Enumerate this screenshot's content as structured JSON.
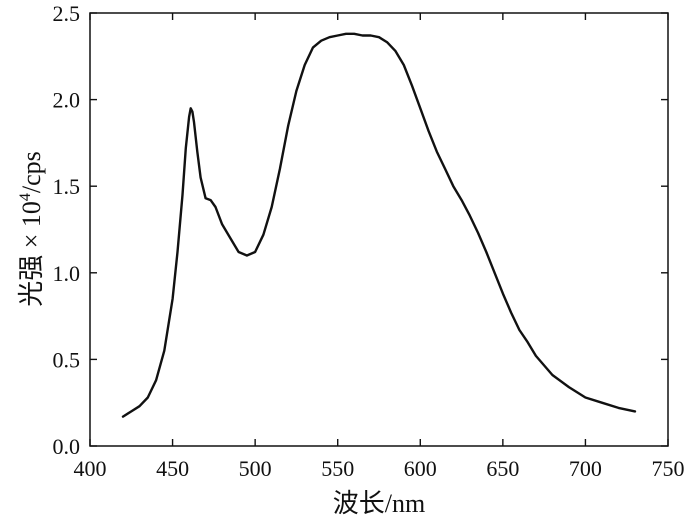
{
  "chart_data": {
    "type": "line",
    "title": "",
    "xlabel": "波长/nm",
    "ylabel": "光强 × 10⁴/cps",
    "ylabel_parts": {
      "base": "光强 × 10",
      "exponent": "4",
      "unit": "/cps"
    },
    "xlim": [
      400,
      750
    ],
    "ylim": [
      0,
      2.5
    ],
    "xticks": [
      400,
      450,
      500,
      550,
      600,
      650,
      700,
      750
    ],
    "xtick_labels": [
      "400",
      "450",
      "500",
      "550",
      "600",
      "650",
      "700",
      "750"
    ],
    "yticks": [
      0,
      0.5,
      1.0,
      1.5,
      2.0,
      2.5
    ],
    "ytick_labels": [
      "0.0",
      "0.5",
      "1.0",
      "1.5",
      "2.0",
      "2.5"
    ],
    "grid": false,
    "legend": null,
    "series": [
      {
        "color": "#111111",
        "x": [
          420,
          425,
          430,
          435,
          440,
          445,
          450,
          453,
          456,
          458,
          460,
          461,
          462,
          463,
          465,
          467,
          470,
          473,
          476,
          480,
          485,
          490,
          495,
          500,
          505,
          510,
          515,
          520,
          525,
          530,
          535,
          540,
          545,
          550,
          555,
          560,
          565,
          570,
          575,
          580,
          585,
          590,
          595,
          600,
          605,
          610,
          615,
          620,
          625,
          630,
          635,
          640,
          645,
          650,
          655,
          660,
          665,
          670,
          680,
          690,
          700,
          710,
          720,
          730
        ],
        "y": [
          0.17,
          0.2,
          0.23,
          0.28,
          0.38,
          0.55,
          0.85,
          1.12,
          1.45,
          1.72,
          1.9,
          1.95,
          1.93,
          1.87,
          1.7,
          1.55,
          1.43,
          1.42,
          1.38,
          1.28,
          1.2,
          1.12,
          1.1,
          1.12,
          1.22,
          1.38,
          1.6,
          1.85,
          2.05,
          2.2,
          2.3,
          2.34,
          2.36,
          2.37,
          2.38,
          2.38,
          2.37,
          2.37,
          2.36,
          2.33,
          2.28,
          2.2,
          2.08,
          1.95,
          1.82,
          1.7,
          1.6,
          1.5,
          1.42,
          1.33,
          1.23,
          1.12,
          1.0,
          0.88,
          0.77,
          0.67,
          0.6,
          0.52,
          0.41,
          0.34,
          0.28,
          0.25,
          0.22,
          0.2
        ]
      }
    ]
  }
}
